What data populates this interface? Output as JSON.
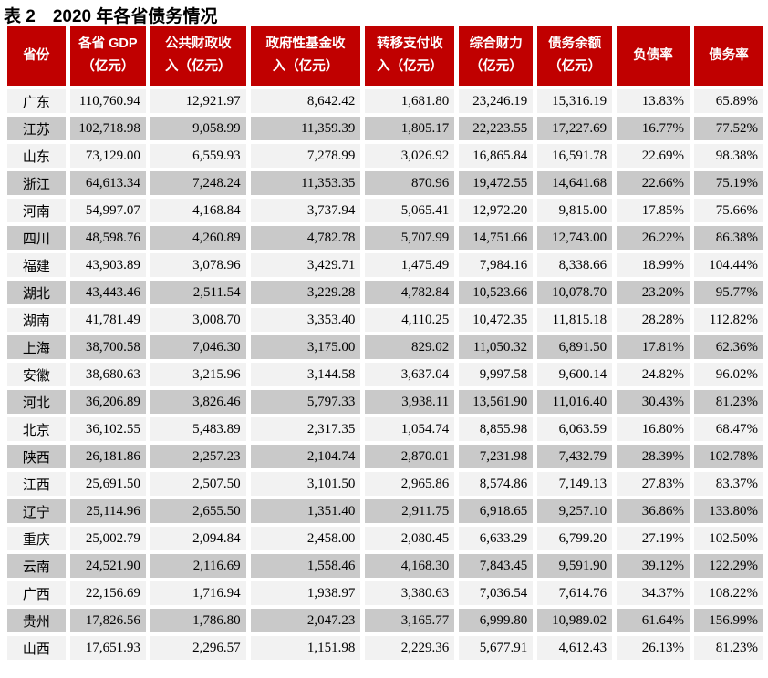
{
  "page": {
    "title": "表 2　2020 年各省债务情况"
  },
  "colors": {
    "header_bg": "#C00000",
    "header_text": "#FFFFFF",
    "row_light": "#F2F2F2",
    "row_dark": "#C9C9C9",
    "title_text": "#000000"
  },
  "table": {
    "columns": [
      {
        "key": "province",
        "label": "省份"
      },
      {
        "key": "gdp",
        "label": "各省 GDP\n（亿元）"
      },
      {
        "key": "public-finance-revenue",
        "label": "公共财政收\n入（亿元）"
      },
      {
        "key": "government-fund-revenue",
        "label": "政府性基金收\n入（亿元）"
      },
      {
        "key": "transfer-payment-revenue",
        "label": "转移支付收\n入（亿元）"
      },
      {
        "key": "comprehensive-financial-strength",
        "label": "综合财力\n（亿元）"
      },
      {
        "key": "debt-balance",
        "label": "债务余额\n（亿元）"
      },
      {
        "key": "liability-ratio",
        "label": "负债率"
      },
      {
        "key": "debt-ratio",
        "label": "债务率"
      }
    ],
    "rows": [
      [
        "广东",
        "110,760.94",
        "12,921.97",
        "8,642.42",
        "1,681.80",
        "23,246.19",
        "15,316.19",
        "13.83%",
        "65.89%"
      ],
      [
        "江苏",
        "102,718.98",
        "9,058.99",
        "11,359.39",
        "1,805.17",
        "22,223.55",
        "17,227.69",
        "16.77%",
        "77.52%"
      ],
      [
        "山东",
        "73,129.00",
        "6,559.93",
        "7,278.99",
        "3,026.92",
        "16,865.84",
        "16,591.78",
        "22.69%",
        "98.38%"
      ],
      [
        "浙江",
        "64,613.34",
        "7,248.24",
        "11,353.35",
        "870.96",
        "19,472.55",
        "14,641.68",
        "22.66%",
        "75.19%"
      ],
      [
        "河南",
        "54,997.07",
        "4,168.84",
        "3,737.94",
        "5,065.41",
        "12,972.20",
        "9,815.00",
        "17.85%",
        "75.66%"
      ],
      [
        "四川",
        "48,598.76",
        "4,260.89",
        "4,782.78",
        "5,707.99",
        "14,751.66",
        "12,743.00",
        "26.22%",
        "86.38%"
      ],
      [
        "福建",
        "43,903.89",
        "3,078.96",
        "3,429.71",
        "1,475.49",
        "7,984.16",
        "8,338.66",
        "18.99%",
        "104.44%"
      ],
      [
        "湖北",
        "43,443.46",
        "2,511.54",
        "3,229.28",
        "4,782.84",
        "10,523.66",
        "10,078.70",
        "23.20%",
        "95.77%"
      ],
      [
        "湖南",
        "41,781.49",
        "3,008.70",
        "3,353.40",
        "4,110.25",
        "10,472.35",
        "11,815.18",
        "28.28%",
        "112.82%"
      ],
      [
        "上海",
        "38,700.58",
        "7,046.30",
        "3,175.00",
        "829.02",
        "11,050.32",
        "6,891.50",
        "17.81%",
        "62.36%"
      ],
      [
        "安徽",
        "38,680.63",
        "3,215.96",
        "3,144.58",
        "3,637.04",
        "9,997.58",
        "9,600.14",
        "24.82%",
        "96.02%"
      ],
      [
        "河北",
        "36,206.89",
        "3,826.46",
        "5,797.33",
        "3,938.11",
        "13,561.90",
        "11,016.40",
        "30.43%",
        "81.23%"
      ],
      [
        "北京",
        "36,102.55",
        "5,483.89",
        "2,317.35",
        "1,054.74",
        "8,855.98",
        "6,063.59",
        "16.80%",
        "68.47%"
      ],
      [
        "陕西",
        "26,181.86",
        "2,257.23",
        "2,104.74",
        "2,870.01",
        "7,231.98",
        "7,432.79",
        "28.39%",
        "102.78%"
      ],
      [
        "江西",
        "25,691.50",
        "2,507.50",
        "3,101.50",
        "2,965.86",
        "8,574.86",
        "7,149.13",
        "27.83%",
        "83.37%"
      ],
      [
        "辽宁",
        "25,114.96",
        "2,655.50",
        "1,351.40",
        "2,911.75",
        "6,918.65",
        "9,257.10",
        "36.86%",
        "133.80%"
      ],
      [
        "重庆",
        "25,002.79",
        "2,094.84",
        "2,458.00",
        "2,080.45",
        "6,633.29",
        "6,799.20",
        "27.19%",
        "102.50%"
      ],
      [
        "云南",
        "24,521.90",
        "2,116.69",
        "1,558.46",
        "4,168.30",
        "7,843.45",
        "9,591.90",
        "39.12%",
        "122.29%"
      ],
      [
        "广西",
        "22,156.69",
        "1,716.94",
        "1,938.97",
        "3,380.63",
        "7,036.54",
        "7,614.76",
        "34.37%",
        "108.22%"
      ],
      [
        "贵州",
        "17,826.56",
        "1,786.80",
        "2,047.23",
        "3,165.77",
        "6,999.80",
        "10,989.02",
        "61.64%",
        "156.99%"
      ],
      [
        "山西",
        "17,651.93",
        "2,296.57",
        "1,151.98",
        "2,229.36",
        "5,677.91",
        "4,612.43",
        "26.13%",
        "81.23%"
      ]
    ]
  }
}
